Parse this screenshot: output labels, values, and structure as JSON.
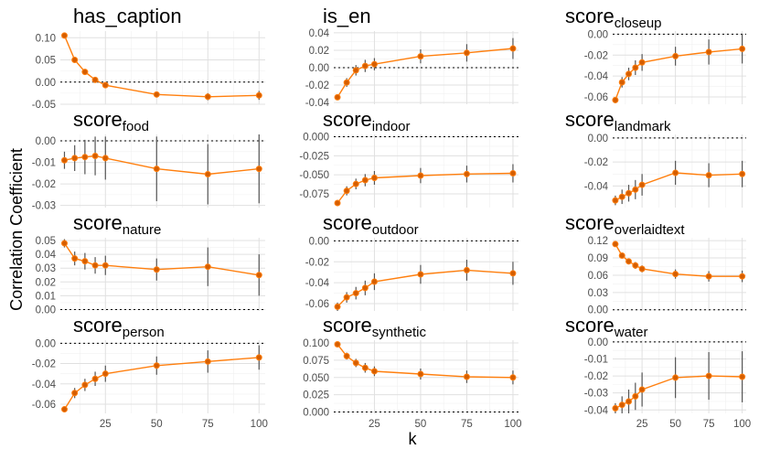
{
  "figure": {
    "xlabel": "k",
    "ylabel": "Correlation Coefficient",
    "line_color": "#ff7f0e",
    "point_color": "#d55e00",
    "errorbar_color": "#555555"
  },
  "chart_data": [
    {
      "type": "line",
      "title": "has_caption",
      "title_base": "has_caption",
      "title_sub": "",
      "x": [
        5,
        10,
        15,
        20,
        25,
        50,
        75,
        100
      ],
      "xlim": [
        3,
        103
      ],
      "xticks": [
        "25",
        "50",
        "75",
        "100"
      ],
      "ylim": [
        -0.05,
        0.115
      ],
      "yticks": [
        "0.10",
        "0.05",
        "0.00",
        "-0.05"
      ],
      "values": [
        0.105,
        0.05,
        0.023,
        0.005,
        -0.007,
        -0.028,
        -0.033,
        -0.03
      ],
      "err": [
        0.003,
        0.003,
        0.003,
        0.004,
        0.005,
        0.006,
        0.008,
        0.01
      ]
    },
    {
      "type": "line",
      "title": "is_en",
      "title_base": "is_en",
      "title_sub": "",
      "x": [
        5,
        10,
        15,
        20,
        25,
        50,
        75,
        100
      ],
      "xlim": [
        3,
        103
      ],
      "xticks": [
        "25",
        "50",
        "75",
        "100"
      ],
      "ylim": [
        -0.042,
        0.042
      ],
      "yticks": [
        "0.04",
        "0.02",
        "0.00",
        "-0.02",
        "-0.04"
      ],
      "values": [
        -0.034,
        -0.017,
        -0.003,
        0.002,
        0.004,
        0.013,
        0.017,
        0.022
      ],
      "err": [
        0.003,
        0.005,
        0.006,
        0.007,
        0.007,
        0.008,
        0.01,
        0.012
      ]
    },
    {
      "type": "line",
      "title": "scorecloseup",
      "title_base": "score",
      "title_sub": "closeup",
      "x": [
        5,
        10,
        15,
        20,
        25,
        50,
        75,
        100
      ],
      "xlim": [
        3,
        103
      ],
      "xticks": [
        "25",
        "50",
        "75",
        "100"
      ],
      "ylim": [
        -0.067,
        0.003
      ],
      "yticks": [
        "0.00",
        "-0.02",
        "-0.04",
        "-0.06"
      ],
      "values": [
        -0.063,
        -0.046,
        -0.038,
        -0.032,
        -0.027,
        -0.021,
        -0.017,
        -0.014
      ],
      "err": [
        0.003,
        0.005,
        0.006,
        0.007,
        0.008,
        0.009,
        0.012,
        0.014
      ]
    },
    {
      "type": "line",
      "title": "scorefood",
      "title_base": "score",
      "title_sub": "food",
      "x": [
        5,
        10,
        15,
        20,
        25,
        50,
        75,
        100
      ],
      "xlim": [
        3,
        103
      ],
      "xticks": [
        "25",
        "50",
        "75",
        "100"
      ],
      "ylim": [
        -0.031,
        0.003
      ],
      "yticks": [
        "0.00",
        "-0.01",
        "-0.02",
        "-0.03"
      ],
      "values": [
        -0.009,
        -0.008,
        -0.0075,
        -0.007,
        -0.008,
        -0.013,
        -0.0155,
        -0.013
      ],
      "err": [
        0.004,
        0.006,
        0.008,
        0.009,
        0.01,
        0.015,
        0.014,
        0.016
      ]
    },
    {
      "type": "line",
      "title": "scoreindoor",
      "title_base": "score",
      "title_sub": "indoor",
      "x": [
        5,
        10,
        15,
        20,
        25,
        50,
        75,
        100
      ],
      "xlim": [
        3,
        103
      ],
      "xticks": [
        "25",
        "50",
        "75",
        "100"
      ],
      "ylim": [
        -0.093,
        0.003
      ],
      "yticks": [
        "0.000",
        "-0.025",
        "-0.050",
        "-0.075"
      ],
      "values": [
        -0.087,
        -0.071,
        -0.062,
        -0.057,
        -0.054,
        -0.051,
        -0.049,
        -0.048
      ],
      "err": [
        0.004,
        0.006,
        0.007,
        0.008,
        0.009,
        0.01,
        0.011,
        0.012
      ]
    },
    {
      "type": "line",
      "title": "scorelandmark",
      "title_base": "score",
      "title_sub": "landmark",
      "x": [
        5,
        10,
        15,
        20,
        25,
        50,
        75,
        100
      ],
      "xlim": [
        3,
        103
      ],
      "xticks": [
        "25",
        "50",
        "75",
        "100"
      ],
      "ylim": [
        -0.058,
        0.003
      ],
      "yticks": [
        "0.00",
        "-0.02",
        "-0.04"
      ],
      "values": [
        -0.052,
        -0.049,
        -0.046,
        -0.043,
        -0.039,
        -0.029,
        -0.031,
        -0.03
      ],
      "err": [
        0.004,
        0.006,
        0.007,
        0.008,
        0.009,
        0.01,
        0.01,
        0.011
      ]
    },
    {
      "type": "line",
      "title": "scorenature",
      "title_base": "score",
      "title_sub": "nature",
      "x": [
        5,
        10,
        15,
        20,
        25,
        50,
        75,
        100
      ],
      "xlim": [
        3,
        103
      ],
      "xticks": [
        "25",
        "50",
        "75",
        "100"
      ],
      "ylim": [
        -0.001,
        0.052
      ],
      "yticks": [
        "0.05",
        "0.04",
        "0.03",
        "0.02",
        "0.01",
        "0.00"
      ],
      "values": [
        0.048,
        0.037,
        0.035,
        0.032,
        0.032,
        0.029,
        0.031,
        0.025
      ],
      "err": [
        0.003,
        0.005,
        0.006,
        0.006,
        0.007,
        0.008,
        0.014,
        0.015
      ]
    },
    {
      "type": "line",
      "title": "scoreoutdoor",
      "title_base": "score",
      "title_sub": "outdoor",
      "x": [
        5,
        10,
        15,
        20,
        25,
        50,
        75,
        100
      ],
      "xlim": [
        3,
        103
      ],
      "xticks": [
        "25",
        "50",
        "75",
        "100"
      ],
      "ylim": [
        -0.067,
        0.003
      ],
      "yticks": [
        "0.00",
        "-0.02",
        "-0.04",
        "-0.06"
      ],
      "values": [
        -0.063,
        -0.054,
        -0.05,
        -0.045,
        -0.039,
        -0.032,
        -0.028,
        -0.031
      ],
      "err": [
        0.004,
        0.005,
        0.006,
        0.007,
        0.008,
        0.009,
        0.01,
        0.011
      ]
    },
    {
      "type": "line",
      "title": "scoreoverlaidtext",
      "title_base": "score",
      "title_sub": "overlaidtext",
      "x": [
        5,
        10,
        15,
        20,
        25,
        50,
        75,
        100
      ],
      "xlim": [
        3,
        103
      ],
      "xticks": [
        "25",
        "50",
        "75",
        "100"
      ],
      "ylim": [
        -0.002,
        0.125
      ],
      "yticks": [
        "0.12",
        "0.09",
        "0.06",
        "0.03",
        "0.00"
      ],
      "values": [
        0.114,
        0.094,
        0.084,
        0.077,
        0.071,
        0.062,
        0.058,
        0.058
      ],
      "err": [
        0.003,
        0.004,
        0.005,
        0.006,
        0.006,
        0.008,
        0.009,
        0.01
      ]
    },
    {
      "type": "line",
      "title": "scoreperson",
      "title_base": "score",
      "title_sub": "person",
      "x": [
        5,
        10,
        15,
        20,
        25,
        50,
        75,
        100
      ],
      "xlim": [
        3,
        103
      ],
      "xticks": [
        "25",
        "50",
        "75",
        "100"
      ],
      "ylim": [
        -0.069,
        0.003
      ],
      "yticks": [
        "0.00",
        "-0.02",
        "-0.04",
        "-0.06"
      ],
      "values": [
        -0.065,
        -0.049,
        -0.041,
        -0.035,
        -0.03,
        -0.022,
        -0.018,
        -0.014
      ],
      "err": [
        0.003,
        0.005,
        0.006,
        0.007,
        0.008,
        0.009,
        0.011,
        0.012
      ]
    },
    {
      "type": "line",
      "title": "scoresynthetic",
      "title_base": "score",
      "title_sub": "synthetic",
      "x": [
        5,
        10,
        15,
        20,
        25,
        50,
        75,
        100
      ],
      "xlim": [
        3,
        103
      ],
      "xticks": [
        "25",
        "50",
        "75",
        "100"
      ],
      "ylim": [
        -0.002,
        0.104
      ],
      "yticks": [
        "0.100",
        "0.075",
        "0.050",
        "0.025",
        "0.000"
      ],
      "values": [
        0.098,
        0.081,
        0.071,
        0.064,
        0.059,
        0.055,
        0.051,
        0.05
      ],
      "err": [
        0.003,
        0.005,
        0.006,
        0.007,
        0.007,
        0.008,
        0.009,
        0.01
      ]
    },
    {
      "type": "line",
      "title": "scorewater",
      "title_base": "score",
      "title_sub": "water",
      "x": [
        5,
        10,
        15,
        20,
        25,
        50,
        75,
        100
      ],
      "xlim": [
        3,
        103
      ],
      "xticks": [
        "25",
        "50",
        "75",
        "100"
      ],
      "ylim": [
        -0.042,
        0.001
      ],
      "yticks": [
        "0.00",
        "-0.01",
        "-0.02",
        "-0.03",
        "-0.04"
      ],
      "values": [
        -0.039,
        -0.037,
        -0.035,
        -0.032,
        -0.028,
        -0.021,
        -0.02,
        -0.0205
      ],
      "err": [
        0.003,
        0.005,
        0.007,
        0.008,
        0.01,
        0.012,
        0.014,
        0.015
      ]
    }
  ]
}
